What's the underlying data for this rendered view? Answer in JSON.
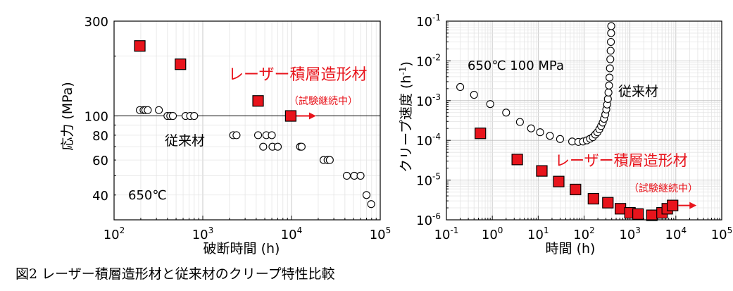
{
  "caption": "図2 レーザー積層造形材と従来材のクリープ特性比較",
  "colors": {
    "laser_fill": "#e8141c",
    "laser_edge": "#000000",
    "conv_edge": "#000000",
    "annotation": "#e8141c"
  },
  "chart_data": [
    {
      "type": "scatter",
      "xlabel": "破断時間 (h)",
      "ylabel": "応力 (MPa)",
      "xscale": "log",
      "yscale": "log",
      "xlim": [
        100,
        100000
      ],
      "ylim": [
        30,
        300
      ],
      "grid": true,
      "x_ticks": [
        {
          "value": 100,
          "base": "10",
          "exp": "2"
        },
        {
          "value": 1000,
          "base": "10",
          "exp": "3"
        },
        {
          "value": 10000,
          "base": "10",
          "exp": "4"
        },
        {
          "value": 100000,
          "base": "10",
          "exp": "5"
        }
      ],
      "y_ticks": [
        {
          "value": 40,
          "label": "40"
        },
        {
          "value": 60,
          "label": "60"
        },
        {
          "value": 80,
          "label": "80"
        },
        {
          "value": 100,
          "label": "100"
        },
        {
          "value": 300,
          "label": "300"
        }
      ],
      "reference_line": 100,
      "series": [
        {
          "name": "レーザー積層造形材",
          "marker": "square",
          "points": [
            [
              195,
              225
            ],
            [
              560,
              182
            ],
            [
              4200,
              119
            ],
            [
              9800,
              100
            ]
          ]
        },
        {
          "name": "従来材",
          "marker": "circle",
          "points": [
            [
              195,
              107
            ],
            [
              215,
              107
            ],
            [
              225,
              107
            ],
            [
              240,
              107
            ],
            [
              320,
              107
            ],
            [
              400,
              100
            ],
            [
              430,
              100
            ],
            [
              460,
              100
            ],
            [
              640,
              100
            ],
            [
              720,
              100
            ],
            [
              800,
              100
            ],
            [
              2200,
              80
            ],
            [
              2400,
              80
            ],
            [
              4200,
              80
            ],
            [
              5200,
              80
            ],
            [
              6000,
              80
            ],
            [
              4800,
              70
            ],
            [
              6100,
              70
            ],
            [
              7000,
              70
            ],
            [
              12500,
              70
            ],
            [
              13000,
              70
            ],
            [
              23000,
              60
            ],
            [
              25500,
              60
            ],
            [
              27000,
              60
            ],
            [
              42000,
              50
            ],
            [
              51000,
              50
            ],
            [
              60000,
              50
            ],
            [
              70000,
              40
            ],
            [
              79000,
              36
            ]
          ]
        }
      ],
      "annotations": {
        "series_label_laser": "レーザー積層造形材",
        "series_label_conv": "従来材",
        "condition": "650℃",
        "ongoing": "（試験継続中）"
      }
    },
    {
      "type": "scatter",
      "xlabel": "時間 (h)",
      "ylabel_main": "クリープ速度 (h",
      "ylabel_sup": "-1",
      "ylabel_end": ")",
      "xscale": "log",
      "yscale": "log",
      "xlim": [
        0.1,
        100000
      ],
      "ylim": [
        1e-06,
        0.1
      ],
      "grid": true,
      "x_ticks": [
        {
          "value": 0.1,
          "base": "10",
          "exp": "-1"
        },
        {
          "value": 1,
          "base": "10",
          "exp": "0"
        },
        {
          "value": 10,
          "base": "10",
          "exp": "1"
        },
        {
          "value": 100,
          "base": "10",
          "exp": "2"
        },
        {
          "value": 1000,
          "base": "10",
          "exp": "3"
        },
        {
          "value": 10000,
          "base": "10",
          "exp": "4"
        },
        {
          "value": 100000,
          "base": "10",
          "exp": "5"
        }
      ],
      "y_ticks": [
        {
          "value": 1e-06,
          "base": "10",
          "exp": "-6"
        },
        {
          "value": 1e-05,
          "base": "10",
          "exp": "-5"
        },
        {
          "value": 0.0001,
          "base": "10",
          "exp": "-4"
        },
        {
          "value": 0.001,
          "base": "10",
          "exp": "-3"
        },
        {
          "value": 0.01,
          "base": "10",
          "exp": "-2"
        },
        {
          "value": 0.1,
          "base": "10",
          "exp": "-1"
        }
      ],
      "series": [
        {
          "name": "レーザー積層造形材",
          "marker": "square",
          "points": [
            [
              0.55,
              0.00015
            ],
            [
              3.5,
              3.3e-05
            ],
            [
              12,
              1.7e-05
            ],
            [
              28,
              9.2e-06
            ],
            [
              65,
              5.8e-06
            ],
            [
              160,
              3.4e-06
            ],
            [
              330,
              2.7e-06
            ],
            [
              620,
              1.9e-06
            ],
            [
              1000,
              1.5e-06
            ],
            [
              1500,
              1.4e-06
            ],
            [
              3000,
              1.3e-06
            ],
            [
              5000,
              1.5e-06
            ],
            [
              6500,
              1.9e-06
            ],
            [
              8500,
              2.3e-06
            ]
          ]
        },
        {
          "name": "従来材",
          "marker": "circle",
          "points": [
            [
              0.2,
              0.0022
            ],
            [
              0.4,
              0.0014
            ],
            [
              0.9,
              0.00082
            ],
            [
              2,
              0.0005
            ],
            [
              4,
              0.00029
            ],
            [
              7,
              0.0002
            ],
            [
              11,
              0.00016
            ],
            [
              18,
              0.00013
            ],
            [
              30,
              0.000108
            ],
            [
              55,
              9.35e-05
            ],
            [
              75,
              9.15e-05
            ],
            [
              95,
              9.35e-05
            ],
            [
              115,
              0.0001
            ],
            [
              135,
              0.00011
            ],
            [
              155,
              0.00012
            ],
            [
              175,
              0.00014
            ],
            [
              195,
              0.00016
            ],
            [
              215,
              0.00019
            ],
            [
              235,
              0.00023
            ],
            [
              255,
              0.00028
            ],
            [
              272,
              0.00035
            ],
            [
              290,
              0.00045
            ],
            [
              305,
              0.0006
            ],
            [
              318,
              0.0008
            ],
            [
              330,
              0.0011
            ],
            [
              340,
              0.0016
            ],
            [
              350,
              0.0024
            ],
            [
              358,
              0.0038
            ],
            [
              366,
              0.0065
            ],
            [
              373,
              0.011
            ],
            [
              379,
              0.018
            ],
            [
              384,
              0.03
            ],
            [
              388,
              0.05
            ],
            [
              391,
              0.075
            ]
          ]
        }
      ],
      "annotations": {
        "series_label_laser": "レーザー積層造形材",
        "series_label_conv": "従来材",
        "condition": "650℃ 100 MPa",
        "ongoing": "（試験継続中）"
      }
    }
  ]
}
